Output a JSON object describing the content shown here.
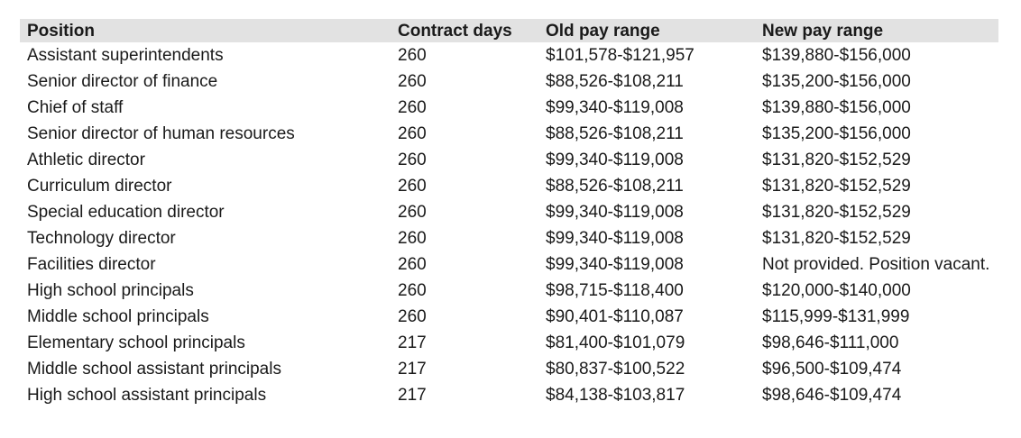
{
  "table": {
    "columns": [
      "Position",
      "Contract days",
      "Old pay range",
      "New pay range"
    ],
    "rows": [
      [
        "Assistant superintendents",
        "260",
        "$101,578-$121,957",
        "$139,880-$156,000"
      ],
      [
        "Senior director of finance",
        "260",
        "$88,526-$108,211",
        "$135,200-$156,000"
      ],
      [
        "Chief of staff",
        "260",
        "$99,340-$119,008",
        "$139,880-$156,000"
      ],
      [
        "Senior director of human resources",
        "260",
        "$88,526-$108,211",
        "$135,200-$156,000"
      ],
      [
        "Athletic director",
        "260",
        "$99,340-$119,008",
        "$131,820-$152,529"
      ],
      [
        "Curriculum director",
        "260",
        "$88,526-$108,211",
        "$131,820-$152,529"
      ],
      [
        "Special education director",
        "260",
        "$99,340-$119,008",
        "$131,820-$152,529"
      ],
      [
        "Technology director",
        "260",
        "$99,340-$119,008",
        "$131,820-$152,529"
      ],
      [
        "Facilities director",
        "260",
        "$99,340-$119,008",
        "Not provided. Position vacant."
      ],
      [
        "High school principals",
        "260",
        "$98,715-$118,400",
        "$120,000-$140,000"
      ],
      [
        "Middle school principals",
        "260",
        "$90,401-$110,087",
        "$115,999-$131,999"
      ],
      [
        "Elementary school principals",
        "217",
        "$81,400-$101,079",
        "$98,646-$111,000"
      ],
      [
        "Middle school assistant principals",
        "217",
        "$80,837-$100,522",
        "$96,500-$109,474"
      ],
      [
        "High school assistant principals",
        "217",
        "$84,138-$103,817",
        "$98,646-$109,474"
      ]
    ]
  },
  "colors": {
    "header_bg": "#e2e2e2",
    "text": "#1a1a1a",
    "page_bg": "#ffffff"
  }
}
